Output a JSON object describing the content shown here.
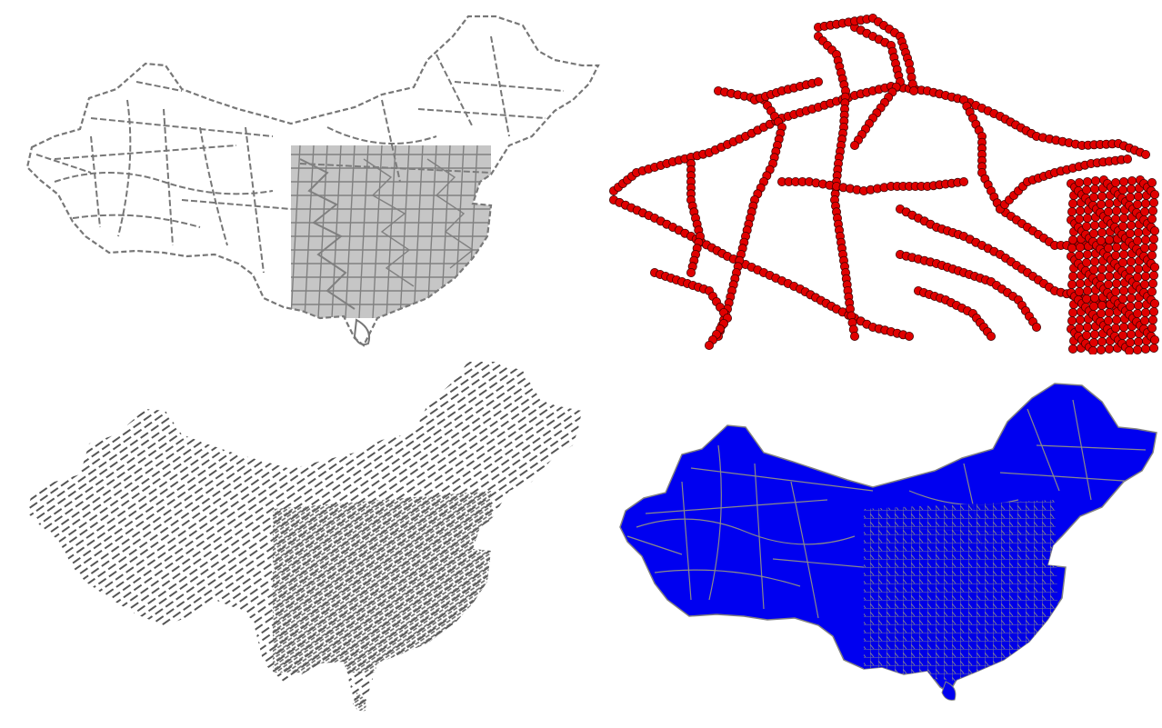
{
  "panels": [
    {
      "id": "p1",
      "style": "dashed-outline",
      "stroke_color": "#777777",
      "fill_color": "none"
    },
    {
      "id": "p2",
      "style": "point-markers",
      "marker_color": "#e00000",
      "marker_edge": "#400000"
    },
    {
      "id": "p3",
      "style": "line-hatching",
      "stroke_color": "#555555"
    },
    {
      "id": "p4",
      "style": "solid-fill",
      "fill_color": "#0000f0",
      "boundary_color": "#808080"
    }
  ]
}
